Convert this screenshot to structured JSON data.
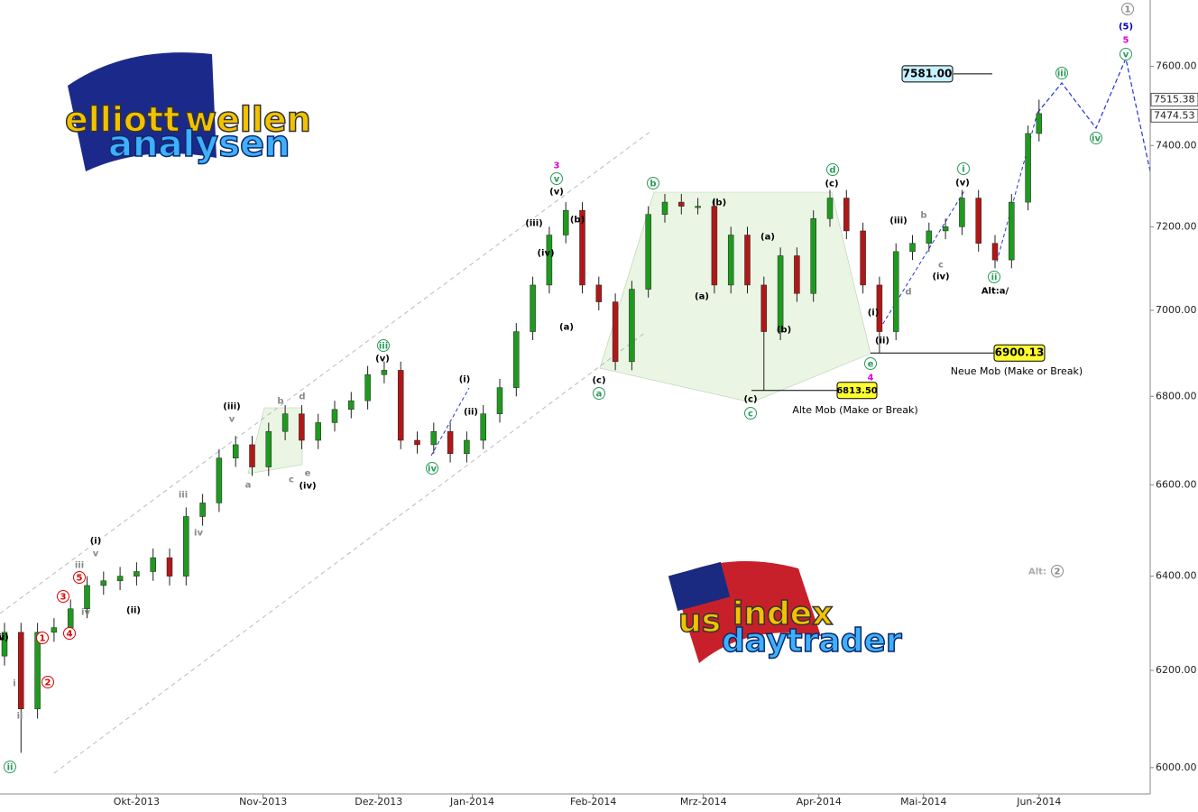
{
  "chart_data": {
    "type": "candlestick",
    "log_scale": true,
    "up_color": "#1f9a1f",
    "down_color": "#b01818",
    "x": [
      0,
      3,
      6,
      9,
      12,
      15,
      18,
      21,
      24,
      27,
      30,
      33,
      36,
      39,
      42,
      45,
      48,
      51,
      54,
      57,
      60,
      63,
      66,
      69,
      72,
      75,
      78,
      81,
      84,
      87,
      90,
      93,
      96,
      99,
      102,
      105,
      108,
      111,
      114,
      117,
      120,
      123,
      126,
      129,
      132,
      135,
      138,
      141,
      144,
      147,
      150,
      153,
      156,
      159,
      162,
      165,
      168,
      171,
      174,
      177,
      180,
      183,
      186,
      188
    ],
    "open": [
      6230,
      6280,
      6120,
      6280,
      6290,
      6330,
      6380,
      6390,
      6400,
      6410,
      6440,
      6400,
      6530,
      6560,
      6660,
      6690,
      6640,
      6720,
      6760,
      6700,
      6740,
      6770,
      6790,
      6850,
      6860,
      6700,
      6690,
      6720,
      6670,
      6700,
      6760,
      6820,
      6950,
      7060,
      7180,
      7240,
      7060,
      7020,
      6880,
      7050,
      7230,
      7260,
      7250,
      7250,
      7060,
      7180,
      7060,
      6950,
      7130,
      7040,
      7220,
      7270,
      7190,
      7060,
      6950,
      7140,
      7160,
      7190,
      7200,
      7270,
      7160,
      7120,
      7260,
      7430
    ],
    "high": [
      6300,
      6300,
      6300,
      6310,
      6350,
      6400,
      6410,
      6420,
      6430,
      6460,
      6460,
      6550,
      6580,
      6680,
      6710,
      6710,
      6740,
      6780,
      6780,
      6760,
      6790,
      6810,
      6870,
      6880,
      6880,
      6720,
      6740,
      6740,
      6720,
      6780,
      6840,
      6970,
      7080,
      7200,
      7260,
      7260,
      7080,
      7040,
      7070,
      7250,
      7280,
      7280,
      7270,
      7270,
      7200,
      7200,
      7080,
      7150,
      7150,
      7240,
      7290,
      7290,
      7210,
      7080,
      7160,
      7180,
      7210,
      7220,
      7290,
      7290,
      7180,
      7280,
      7450,
      7515.38
    ],
    "low": [
      6210,
      6030,
      6100,
      6260,
      6270,
      6310,
      6360,
      6370,
      6380,
      6390,
      6380,
      6380,
      6510,
      6540,
      6640,
      6620,
      6620,
      6700,
      6680,
      6680,
      6720,
      6750,
      6770,
      6830,
      6680,
      6670,
      6670,
      6650,
      6650,
      6680,
      6740,
      6800,
      6930,
      7040,
      7160,
      7040,
      7000,
      6860,
      6860,
      7030,
      7210,
      7230,
      7230,
      7040,
      7040,
      7040,
      6813.5,
      6930,
      7020,
      7020,
      7200,
      7170,
      7040,
      6900.13,
      6930,
      7120,
      7140,
      7170,
      7180,
      7140,
      7100,
      7100,
      7240,
      7410
    ],
    "close": [
      6280,
      6120,
      6280,
      6290,
      6330,
      6380,
      6390,
      6400,
      6410,
      6440,
      6400,
      6530,
      6560,
      6660,
      6690,
      6640,
      6720,
      6760,
      6700,
      6740,
      6770,
      6790,
      6850,
      6860,
      6700,
      6690,
      6720,
      6670,
      6700,
      6760,
      6820,
      6950,
      7060,
      7180,
      7240,
      7060,
      7020,
      6880,
      7050,
      7230,
      7260,
      7250,
      7250,
      7060,
      7180,
      7060,
      6950,
      7130,
      7040,
      7220,
      7270,
      7190,
      7060,
      6950,
      7140,
      7160,
      7190,
      7200,
      7270,
      7160,
      7120,
      7260,
      7430,
      7480
    ],
    "xlim": [
      0,
      208
    ],
    "xticks": [
      {
        "value": 24,
        "label": "Okt-2013"
      },
      {
        "value": 47,
        "label": "Nov-2013"
      },
      {
        "value": 68,
        "label": "Dez-2013"
      },
      {
        "value": 85,
        "label": "Jan-2014"
      },
      {
        "value": 107,
        "label": "Feb-2014"
      },
      {
        "value": 127,
        "label": "Mrz-2014"
      },
      {
        "value": 148,
        "label": "Apr-2014"
      },
      {
        "value": 167,
        "label": "Mai-2014"
      },
      {
        "value": 188,
        "label": "Jun-2014"
      }
    ],
    "ylim": [
      5947,
      7772
    ],
    "yticks": [
      {
        "value": 6000,
        "label": "6000.00"
      },
      {
        "value": 6200,
        "label": "6200.00"
      },
      {
        "value": 6400,
        "label": "6400.00"
      },
      {
        "value": 6600,
        "label": "6600.00"
      },
      {
        "value": 6800,
        "label": "6800.00"
      },
      {
        "value": 7000,
        "label": "7000.00"
      },
      {
        "value": 7200,
        "label": "7200.00"
      },
      {
        "value": 7400,
        "label": "7400.00"
      },
      {
        "value": 7600,
        "label": "7600.00"
      }
    ],
    "price_tags": [
      {
        "value": 7515.38,
        "label": "7515.38"
      },
      {
        "value": 7474.53,
        "label": "7474.53"
      }
    ],
    "levels": [
      {
        "value": 7581,
        "label": "7581.00",
        "color": "#c8f0ff"
      },
      {
        "value": 6900.13,
        "label": "6900.13",
        "color": "#ffff30",
        "note": "Neue Mob (Make or Break)"
      },
      {
        "value": 6813.5,
        "label": "6813.50",
        "color": "#ffff30",
        "note": "Alte Mob (Make or Break)"
      }
    ],
    "annotations": [
      {
        "text": "3",
        "color": "#e000e0"
      },
      {
        "text": "v",
        "color": "#2a9a5a",
        "circle": true
      },
      {
        "text": "(v)",
        "color": "#000"
      },
      {
        "text": "(iii)",
        "color": "#000"
      },
      {
        "text": "(iv)",
        "color": "#000"
      },
      {
        "text": "(b)",
        "color": "#000"
      },
      {
        "text": "(a)",
        "color": "#000"
      },
      {
        "text": "(c)",
        "color": "#000"
      },
      {
        "text": "a",
        "color": "#2a9a5a",
        "circle": true
      },
      {
        "text": "b",
        "color": "#2a9a5a",
        "circle": true
      },
      {
        "text": "(b)",
        "color": "#000"
      },
      {
        "text": "(a)",
        "color": "#000"
      },
      {
        "text": "(a)",
        "color": "#000"
      },
      {
        "text": "(b)",
        "color": "#000"
      },
      {
        "text": "(c)",
        "color": "#000"
      },
      {
        "text": "c",
        "color": "#2a9a5a",
        "circle": true
      },
      {
        "text": "d",
        "color": "#2a9a5a",
        "circle": true
      },
      {
        "text": "(c)",
        "color": "#000"
      },
      {
        "text": "e",
        "color": "#2a9a5a",
        "circle": true
      },
      {
        "text": "4",
        "color": "#e000e0"
      },
      {
        "text": "(ii)",
        "color": "#000"
      },
      {
        "text": "(i)",
        "color": "#000"
      },
      {
        "text": "(iii)",
        "color": "#000"
      },
      {
        "text": "(iv)",
        "color": "#000"
      },
      {
        "text": "i",
        "color": "#2a9a5a",
        "circle": true
      },
      {
        "text": "(v)",
        "color": "#000"
      },
      {
        "text": "ii",
        "color": "#2a9a5a",
        "circle": true
      },
      {
        "text": "Alt:a/",
        "color": "#000"
      },
      {
        "text": "iii",
        "color": "#2a9a5a",
        "circle": true
      },
      {
        "text": "iv",
        "color": "#2a9a5a",
        "circle": true
      },
      {
        "text": "v",
        "color": "#2a9a5a",
        "circle": true
      },
      {
        "text": "5",
        "color": "#e000e0"
      },
      {
        "text": "(5)",
        "color": "#0000c0"
      },
      {
        "text": "1",
        "color": "#888",
        "circle": true
      },
      {
        "text": "Alt:",
        "color": "#aaa"
      },
      {
        "text": "2",
        "color": "#888",
        "circle": true
      },
      {
        "text": "(iii)",
        "color": "#000"
      },
      {
        "text": "v",
        "color": "#888"
      },
      {
        "text": "iii",
        "color": "#2a9a5a",
        "circle": true
      },
      {
        "text": "(v)",
        "color": "#000"
      },
      {
        "text": "iv",
        "color": "#2a9a5a",
        "circle": true
      },
      {
        "text": "(i)",
        "color": "#000"
      },
      {
        "text": "(ii)",
        "color": "#000"
      },
      {
        "text": "(iv)",
        "color": "#000"
      },
      {
        "text": "a",
        "color": "#888"
      },
      {
        "text": "c",
        "color": "#888"
      },
      {
        "text": "e",
        "color": "#888"
      },
      {
        "text": "b",
        "color": "#888"
      },
      {
        "text": "d",
        "color": "#888"
      },
      {
        "text": "ii",
        "color": "#2a9a5a",
        "circle": true
      },
      {
        "text": "(ii)",
        "color": "#000"
      },
      {
        "text": "(i)",
        "color": "#000"
      },
      {
        "text": "v",
        "color": "#888"
      },
      {
        "text": "iii",
        "color": "#888"
      },
      {
        "text": "5",
        "color": "#e00000",
        "circle": true
      },
      {
        "text": "3",
        "color": "#e00000",
        "circle": true
      },
      {
        "text": "1",
        "color": "#e00000",
        "circle": true
      },
      {
        "text": "4",
        "color": "#e00000",
        "circle": true
      },
      {
        "text": "2",
        "color": "#e00000",
        "circle": true
      },
      {
        "text": "iv",
        "color": "#888"
      },
      {
        "text": "i",
        "color": "#888"
      },
      {
        "text": "ii",
        "color": "#888"
      },
      {
        "text": "iv",
        "color": "#888"
      },
      {
        "text": "iii",
        "color": "#888"
      },
      {
        "text": "(iii)",
        "color": "#000"
      },
      {
        "text": "(iv)",
        "color": "#000"
      },
      {
        "text": "b",
        "color": "#888"
      },
      {
        "text": "c",
        "color": "#888"
      },
      {
        "text": "d",
        "color": "#888"
      }
    ]
  },
  "logos": {
    "top": [
      "elliott",
      "wellen",
      "analysen"
    ],
    "bottom": [
      "us",
      "index",
      "daytrader"
    ]
  }
}
